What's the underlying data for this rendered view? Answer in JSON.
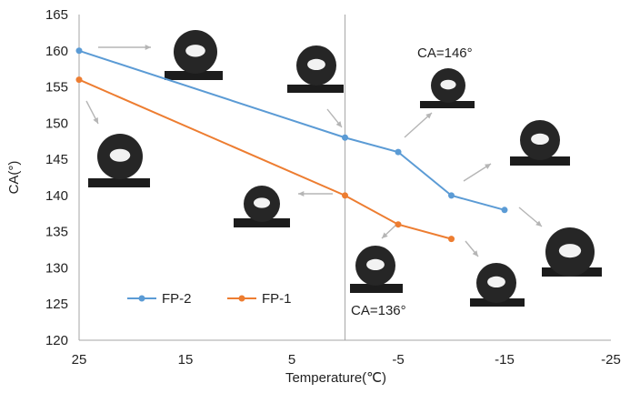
{
  "chart_data": {
    "type": "line",
    "title": "",
    "xlabel": "Temperature(℃)",
    "ylabel": "CA(°)",
    "xlim": [
      25,
      -25
    ],
    "ylim": [
      120,
      165
    ],
    "x_reversed": true,
    "xticks": [
      "25",
      "15",
      "5",
      "-5",
      "-15",
      "-25"
    ],
    "yticks": [
      "120",
      "125",
      "130",
      "135",
      "140",
      "145",
      "150",
      "155",
      "160",
      "165"
    ],
    "grid": false,
    "legend_position": "bottom-left",
    "series": [
      {
        "name": "FP-2",
        "color": "#5b9bd5",
        "x": [
          25,
          0,
          -5,
          -10,
          -15
        ],
        "y": [
          160,
          148,
          146,
          140,
          138
        ]
      },
      {
        "name": "FP-1",
        "color": "#ed7d31",
        "x": [
          25,
          0,
          -5,
          -10
        ],
        "y": [
          156,
          140,
          136,
          134
        ]
      }
    ],
    "annotations": [
      {
        "text": "CA=146°"
      },
      {
        "text": "CA=136°"
      }
    ]
  }
}
